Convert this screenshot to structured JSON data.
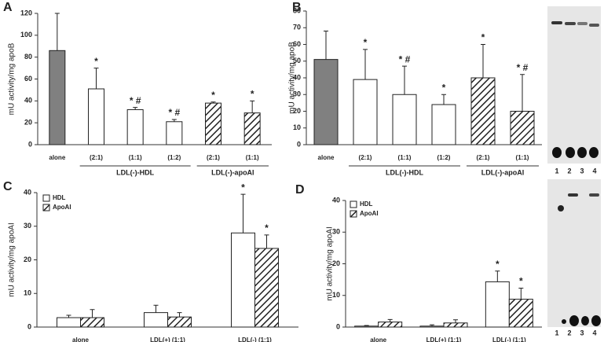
{
  "chart_data": [
    {
      "type": "bar",
      "panel": "A",
      "ylabel": "mU activity/mg apoB",
      "ylim": [
        0,
        120
      ],
      "yticks": [
        0,
        20,
        40,
        60,
        80,
        100,
        120
      ],
      "categories": [
        "alone",
        "(2:1)",
        "(1:1)",
        "(1:2)",
        "(2:1)",
        "(1:1)"
      ],
      "values": [
        86,
        51,
        32,
        21,
        38,
        29
      ],
      "errors": [
        34,
        19,
        2,
        2,
        1,
        11
      ],
      "color": "#808080",
      "patterns": [
        "solid",
        "open",
        "open",
        "open",
        "hatched",
        "hatched"
      ],
      "annotations": [
        null,
        "*",
        "* #",
        "* #",
        "*",
        "*"
      ],
      "groups": [
        {
          "label": "LDL(-)-HDL",
          "span": [
            1,
            3
          ]
        },
        {
          "label": "LDL(-)-apoAI",
          "span": [
            4,
            5
          ]
        }
      ]
    },
    {
      "type": "bar",
      "panel": "B",
      "ylabel": "mU activity/mg apoB",
      "ylim": [
        0,
        80
      ],
      "yticks": [
        0,
        10,
        20,
        30,
        40,
        50,
        60,
        70,
        80
      ],
      "categories": [
        "alone",
        "(2:1)",
        "(1:1)",
        "(1:2)",
        "(2:1)",
        "(1:1)"
      ],
      "values": [
        51,
        39,
        30,
        24,
        40,
        20
      ],
      "errors": [
        17,
        18,
        17,
        6,
        20,
        22
      ],
      "color": "#808080",
      "patterns": [
        "solid",
        "open",
        "open",
        "open",
        "hatched",
        "hatched"
      ],
      "annotations": [
        null,
        "*",
        "* #",
        "*",
        "*",
        "* #"
      ],
      "groups": [
        {
          "label": "LDL(-)-HDL",
          "span": [
            1,
            3
          ]
        },
        {
          "label": "LDL(-)-apoAI",
          "span": [
            4,
            5
          ]
        }
      ],
      "gel_lanes": [
        "1",
        "2",
        "3",
        "4"
      ]
    },
    {
      "type": "bar",
      "panel": "C",
      "ylabel": "mU activity/mg apoAI",
      "ylim": [
        0,
        40
      ],
      "yticks": [
        0,
        10,
        20,
        30,
        40
      ],
      "categories": [
        "alone",
        "LDL(+) (1:1)",
        "LDL(-) (1:1)"
      ],
      "series": [
        {
          "name": "HDL",
          "pattern": "open",
          "values": [
            2.8,
            4.3,
            28
          ],
          "errors": [
            0.7,
            2.2,
            11.5
          ],
          "annotations": [
            null,
            null,
            "*"
          ]
        },
        {
          "name": "ApoAI",
          "pattern": "hatched",
          "values": [
            2.8,
            3.0,
            23.4
          ],
          "errors": [
            2.4,
            1.3,
            4
          ],
          "annotations": [
            null,
            null,
            "*"
          ]
        }
      ]
    },
    {
      "type": "bar",
      "panel": "D",
      "ylabel": "mU activity/mg apoAI",
      "ylim": [
        0,
        40
      ],
      "yticks": [
        0,
        10,
        20,
        30,
        40
      ],
      "categories": [
        "alone",
        "LDL(+) (1:1)",
        "LDL(-) (1:1)"
      ],
      "series": [
        {
          "name": "HDL",
          "pattern": "open",
          "values": [
            0.3,
            0.3,
            14.3
          ],
          "errors": [
            0.2,
            0.4,
            3.4
          ],
          "annotations": [
            null,
            null,
            "*"
          ]
        },
        {
          "name": "ApoAI",
          "pattern": "hatched",
          "values": [
            1.6,
            1.3,
            8.8
          ],
          "errors": [
            0.8,
            1.0,
            3.5
          ],
          "annotations": [
            null,
            null,
            "*"
          ]
        }
      ],
      "gel_lanes": [
        "1",
        "2",
        "3",
        "4"
      ]
    }
  ]
}
